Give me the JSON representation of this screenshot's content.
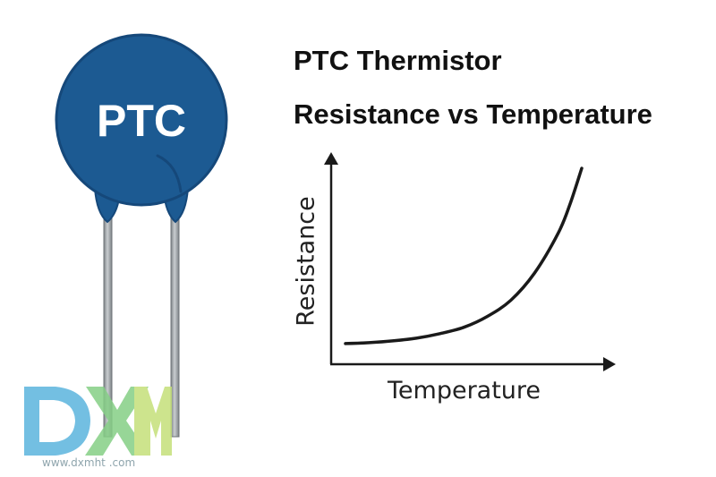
{
  "component": {
    "label": "PTC",
    "body_color": "#1c5a92",
    "body_edge_color": "#15487a",
    "lead_color": "#9aa0a4"
  },
  "title": {
    "line1": "PTC Thermistor",
    "line2": "Resistance vs Temperature"
  },
  "chart_data": {
    "type": "line",
    "title": "PTC Thermistor Resistance vs Temperature",
    "xlabel": "Temperature",
    "ylabel": "Resistance",
    "x_ticks": [],
    "y_ticks": [],
    "grid": false,
    "legend": "none",
    "curve": "exponential rise",
    "x": [
      0,
      0.1,
      0.2,
      0.3,
      0.4,
      0.5,
      0.6,
      0.7,
      0.8,
      0.9,
      0.95,
      1.0
    ],
    "values": [
      0.03,
      0.035,
      0.045,
      0.06,
      0.085,
      0.12,
      0.18,
      0.27,
      0.42,
      0.64,
      0.8,
      1.0
    ],
    "xlim": [
      0,
      1.15
    ],
    "ylim": [
      0,
      1.2
    ],
    "line_color": "#1a1a1a"
  },
  "watermark": {
    "logo_text": "DXM",
    "letter_colors": [
      "#5bb4de",
      "#86cf86",
      "#c5e07a"
    ],
    "url": "www.dxmht .com"
  }
}
